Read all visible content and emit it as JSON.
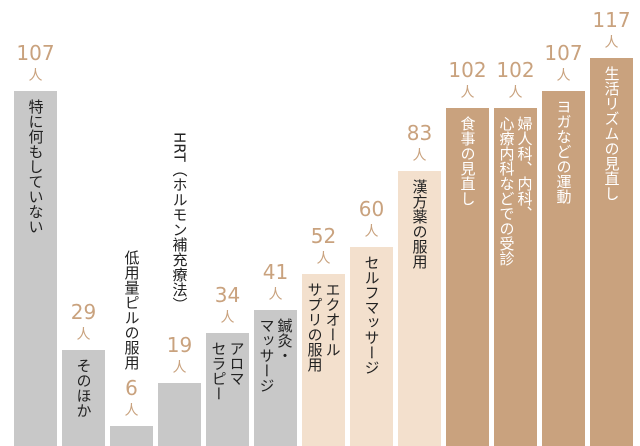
{
  "chart_data": {
    "type": "bar",
    "unit": "人",
    "categories": [
      [
        "特に何もしていない"
      ],
      [
        "そのほか"
      ],
      [
        "低用量ピルの服用"
      ],
      [
        "HRT（ホルモン補充療法）"
      ],
      [
        "アロマ",
        "セラピー"
      ],
      [
        "鍼灸・",
        "マッサージ"
      ],
      [
        "エクオール",
        "サプリの服用"
      ],
      [
        "セルフマッサージ"
      ],
      [
        "漢方薬の服用"
      ],
      [
        "食事の見直し"
      ],
      [
        "婦人科、内科、",
        "心療内科などでの受診"
      ],
      [
        "ヨガなどの運動"
      ],
      [
        "生活リズムの見直し"
      ]
    ],
    "values": [
      107,
      29,
      6,
      19,
      34,
      41,
      52,
      60,
      83,
      102,
      102,
      107,
      117
    ],
    "colors": [
      "#c8c8c8",
      "#c8c8c8",
      "#c8c8c8",
      "#c8c8c8",
      "#c8c8c8",
      "#c8c8c8",
      "#f3e0cd",
      "#f3e0cd",
      "#f3e0cd",
      "#c9a27e",
      "#c9a27e",
      "#c9a27e",
      "#c9a27e"
    ],
    "label_colors": [
      "#222222",
      "#222222",
      "#222222",
      "#222222",
      "#222222",
      "#222222",
      "#222222",
      "#222222",
      "#222222",
      "#ffffff",
      "#ffffff",
      "#ffffff",
      "#ffffff"
    ],
    "value_color": "#c9a27e"
  }
}
